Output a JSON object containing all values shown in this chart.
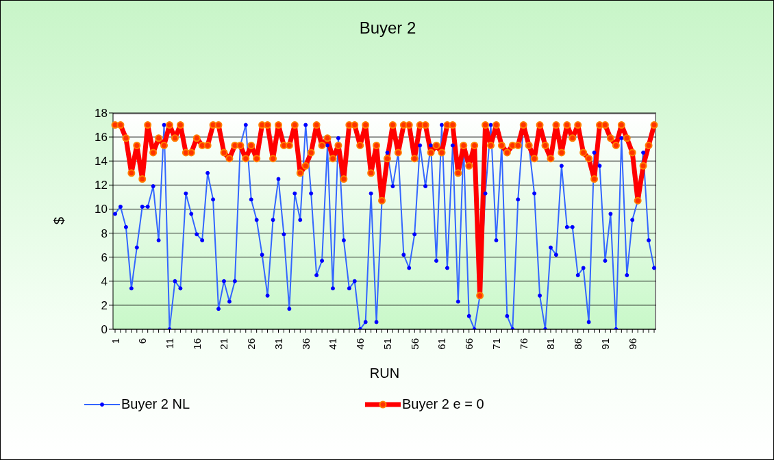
{
  "chart_data": {
    "type": "line",
    "title": "Buyer 2",
    "xlabel": "RUN",
    "ylabel": "$",
    "categories": [
      "1",
      null,
      null,
      null,
      null,
      "6",
      null,
      null,
      null,
      null,
      "11",
      null,
      null,
      null,
      null,
      "16",
      null,
      null,
      null,
      null,
      "21",
      null,
      null,
      null,
      null,
      "26",
      null,
      null,
      null,
      null,
      "31",
      null,
      null,
      null,
      null,
      "36",
      null,
      null,
      null,
      null,
      "41",
      null,
      null,
      null,
      null,
      "46",
      null,
      null,
      null,
      null,
      "51",
      null,
      null,
      null,
      null,
      "56",
      null,
      null,
      null,
      null,
      "61",
      null,
      null,
      null,
      null,
      "66",
      null,
      null,
      null,
      null,
      "71",
      null,
      null,
      null,
      null,
      "76",
      null,
      null,
      null,
      null,
      "81",
      null,
      null,
      null,
      null,
      "86",
      null,
      null,
      null,
      null,
      "91",
      null,
      null,
      null,
      null,
      "96",
      null,
      null,
      null,
      null
    ],
    "series": [
      {
        "name": "Buyer 2 NL",
        "color": "#3366ff",
        "values": [
          9.6,
          10.2,
          8.5,
          3.4,
          6.8,
          10.2,
          10.2,
          11.9,
          7.4,
          17,
          0,
          4,
          3.4,
          11.3,
          9.6,
          7.9,
          7.4,
          13,
          10.8,
          1.7,
          4,
          2.3,
          4,
          15.3,
          17,
          10.8,
          9.1,
          6.2,
          2.8,
          9.1,
          12.5,
          7.9,
          1.7,
          11.3,
          9.1,
          17,
          11.3,
          4.5,
          5.7,
          15.3,
          3.4,
          15.9,
          7.4,
          3.4,
          4,
          0,
          0.6,
          11.3,
          0.6,
          10.7,
          14.7,
          11.9,
          14.7,
          6.2,
          5.1,
          7.9,
          15.3,
          11.9,
          15.3,
          5.7,
          17,
          5.1,
          15.3,
          2.3,
          15.3,
          1.1,
          0,
          2.8,
          11.3,
          17,
          7.4,
          15.3,
          1.1,
          0,
          10.8,
          17,
          15.3,
          11.3,
          2.8,
          0,
          6.8,
          6.2,
          13.6,
          8.5,
          8.5,
          4.5,
          5.1,
          0.6,
          14.7,
          13.6,
          5.7,
          9.6,
          0,
          15.9,
          4.5,
          9.1,
          10.7,
          14.7,
          7.4,
          5.1
        ]
      },
      {
        "name": "Buyer 2 e = 0",
        "color": "#ff0000",
        "values": [
          17,
          17,
          15.9,
          13,
          15.3,
          12.5,
          17,
          14.7,
          15.9,
          15.3,
          17,
          15.9,
          17,
          14.7,
          14.7,
          15.9,
          15.3,
          15.3,
          17,
          17,
          14.7,
          14.2,
          15.3,
          15.3,
          14.2,
          15.3,
          14.2,
          17,
          17,
          14.2,
          17,
          15.3,
          15.3,
          17,
          13,
          13.6,
          14.7,
          17,
          15.3,
          15.9,
          14.2,
          15.3,
          12.5,
          17,
          17,
          15.3,
          17,
          13,
          15.3,
          10.7,
          14.2,
          17,
          14.7,
          17,
          17,
          14.2,
          17,
          17,
          14.7,
          15.3,
          14.7,
          17,
          17,
          13,
          15.3,
          13.6,
          15.3,
          2.8,
          17,
          15.3,
          17,
          15.3,
          14.7,
          15.3,
          15.3,
          17,
          15.3,
          14.2,
          17,
          15.3,
          14.2,
          17,
          14.7,
          17,
          15.9,
          17,
          14.7,
          14.2,
          12.5,
          17,
          17,
          15.9,
          15.3,
          17,
          15.9,
          14.7,
          10.7,
          13.6,
          15.3,
          17
        ]
      }
    ],
    "ylim": [
      0,
      18
    ],
    "yticks": [
      0,
      2,
      4,
      6,
      8,
      10,
      12,
      14,
      16,
      18
    ],
    "grid": "y",
    "legend": "bottom",
    "marker": "circle"
  }
}
